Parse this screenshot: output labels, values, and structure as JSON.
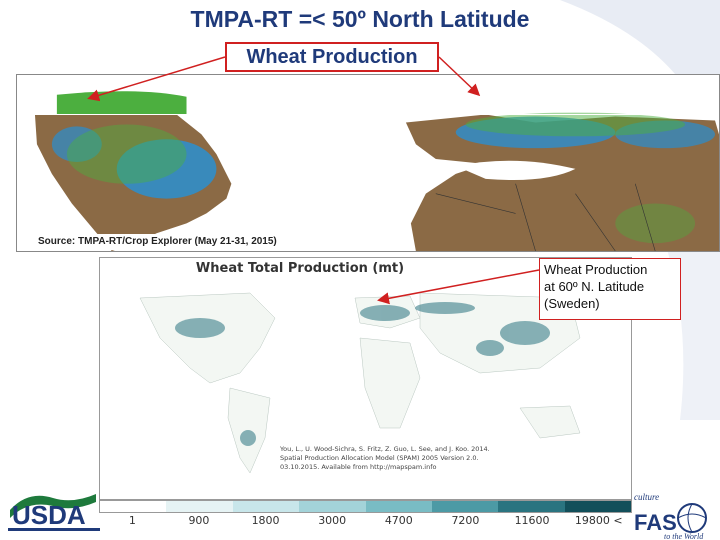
{
  "slide": {
    "title": "TMPA-RT =< 50º North Latitude",
    "callout_top": "Wheat Production",
    "source": "Source: TMPA-RT/Crop Explorer (May 21-31, 2015)",
    "callout_right": [
      "Wheat Production",
      "at 60º N. Latitude",
      "(Sweden)"
    ]
  },
  "bottom_map": {
    "title": "Wheat Total Production (mt)",
    "citation": [
      "You, L., U. Wood-Sichra, S. Fritz, Z. Guo, L. See, and J. Koo. 2014.",
      "Spatial Production Allocation Model (SPAM) 2005 Version 2.0.",
      "03.10.2015. Available from http://mapspam.info"
    ],
    "colorbar": {
      "ticks": [
        "1",
        "900",
        "1800",
        "3000",
        "4700",
        "7200",
        "11600",
        "19800 <"
      ],
      "colors": [
        "#ffffff",
        "#e6f3f4",
        "#c8e6ea",
        "#a3d3d9",
        "#79bcc4",
        "#4c9aa5",
        "#2a7480",
        "#124f5a"
      ]
    }
  },
  "logos": {
    "usda": "USDA",
    "fas_tag_top": "culture",
    "fas": "FAS",
    "fas_tag_bottom": "to the World"
  },
  "colors": {
    "title": "#1f3a7a",
    "callout_border": "#d02020",
    "land": "#8b6a45",
    "ocean": "#ffffff",
    "wet": "#2a8fd0",
    "vegetation": "#4caf3f"
  }
}
